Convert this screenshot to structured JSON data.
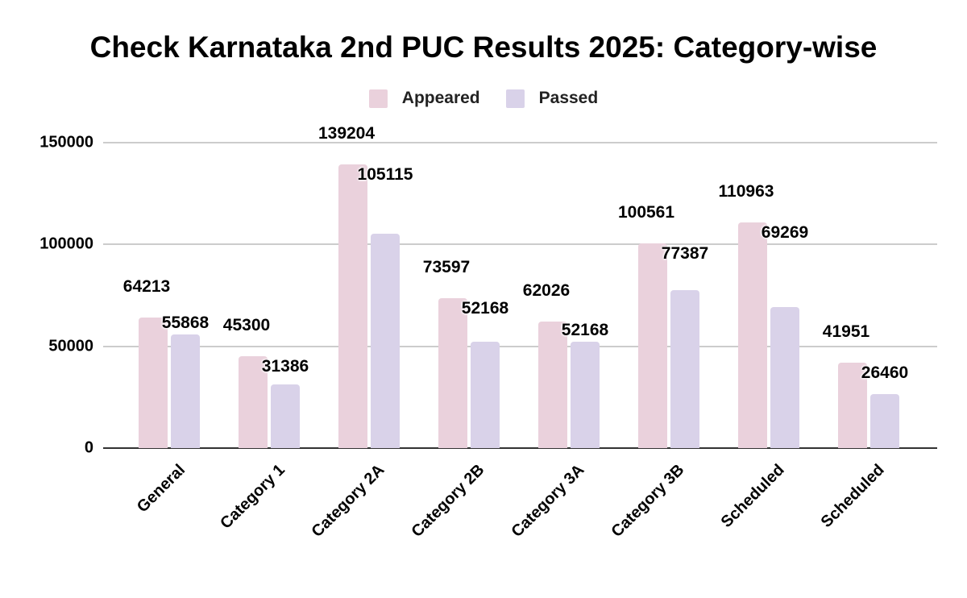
{
  "title": "Check Karnataka 2nd PUC Results 2025: Category-wise",
  "legend": [
    {
      "label": "Appeared",
      "color": "#EAD1DC"
    },
    {
      "label": "Passed",
      "color": "#D9D2E9"
    }
  ],
  "y_ticks": [
    "0",
    "50000",
    "100000",
    "150000"
  ],
  "chart_data": {
    "type": "bar",
    "title": "Check Karnataka 2nd PUC Results 2025: Category-wise",
    "xlabel": "",
    "ylabel": "",
    "ylim": [
      0,
      150000
    ],
    "grid": true,
    "legend_position": "top",
    "categories": [
      "General",
      "Category 1",
      "Category 2A",
      "Category 2B",
      "Category 3A",
      "Category 3B",
      "Scheduled",
      "Scheduled"
    ],
    "series": [
      {
        "name": "Appeared",
        "color": "#EAD1DC",
        "values": [
          64213,
          45300,
          139204,
          73597,
          62026,
          100561,
          110963,
          41951
        ]
      },
      {
        "name": "Passed",
        "color": "#D9D2E9",
        "values": [
          55868,
          31386,
          105115,
          52168,
          52168,
          77387,
          69269,
          26460
        ]
      }
    ]
  }
}
